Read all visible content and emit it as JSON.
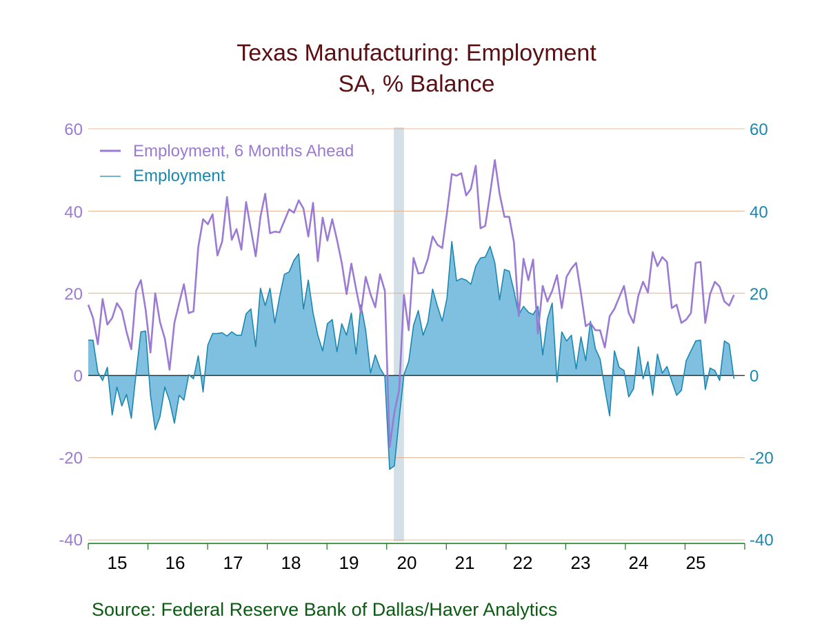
{
  "chart_data": {
    "type": "line",
    "title": "Texas Manufacturing: Employment",
    "subtitle": "SA, % Balance",
    "source": "Source:  Federal Reserve Bank of Dallas/Haver Analytics",
    "ylim": [
      -40,
      60
    ],
    "yticks": [
      -40,
      -20,
      0,
      20,
      40,
      60
    ],
    "y_tick_labels": [
      "-40",
      "-20",
      "0",
      "20",
      "40",
      "60"
    ],
    "x_tick_labels": [
      "15",
      "16",
      "17",
      "18",
      "19",
      "20",
      "21",
      "22",
      "23",
      "24",
      "25"
    ],
    "x_start": 2015.0,
    "x_end": 2026.0,
    "legend_position": "top-left",
    "recession_shading": [
      {
        "start": 2020.12,
        "end": 2020.29
      }
    ],
    "colors": {
      "series1": "#9b7ad4",
      "series2_line": "#1b87b0",
      "series2_fill": "#7fc0e0",
      "grid": "#e8a070",
      "axis_green": "#0b7a12",
      "recession": "#d3e0e8",
      "title": "#5a0f12",
      "source": "#0b5a12"
    },
    "series": [
      {
        "name": "Employment, 6 Months Ahead",
        "values": [
          17.2,
          14.0,
          7.6,
          18.6,
          12.4,
          14.0,
          17.6,
          15.8,
          10.6,
          6.4,
          20.6,
          23.2,
          16.0,
          5.6,
          20.0,
          13.0,
          9.0,
          1.4,
          12.8,
          17.6,
          22.2,
          15.2,
          15.6,
          31.2,
          38.0,
          36.8,
          39.2,
          29.2,
          32.6,
          43.4,
          33.0,
          35.6,
          30.6,
          42.2,
          35.6,
          29.0,
          38.6,
          44.2,
          34.6,
          35.0,
          34.8,
          37.6,
          40.4,
          39.6,
          42.6,
          40.6,
          33.8,
          42.0,
          27.8,
          38.4,
          32.8,
          38.0,
          33.0,
          27.4,
          19.8,
          27.2,
          21.0,
          15.2,
          24.0,
          19.8,
          16.6,
          24.6,
          20.6,
          -17.4,
          -9.0,
          -3.4,
          19.6,
          11.0,
          28.6,
          24.8,
          25.0,
          28.4,
          33.8,
          31.8,
          31.0,
          39.6,
          49.0,
          48.6,
          49.2,
          43.8,
          45.4,
          51.0,
          35.8,
          36.4,
          44.2,
          52.4,
          44.2,
          38.6,
          38.6,
          32.4,
          14.4,
          28.4,
          23.2,
          28.2,
          10.2,
          21.8,
          18.0,
          20.6,
          24.4,
          16.4,
          24.0,
          26.0,
          27.4,
          20.0,
          12.0,
          12.8,
          11.0,
          11.0,
          6.8,
          14.4,
          16.2,
          19.0,
          21.8,
          15.2,
          12.8,
          19.4,
          22.8,
          20.2,
          30.0,
          26.6,
          28.8,
          27.6,
          16.4,
          17.2,
          12.8,
          13.6,
          15.2,
          27.4,
          27.6,
          12.8,
          19.8,
          22.8,
          21.6,
          18.0,
          17.0,
          19.6
        ]
      },
      {
        "name": "Employment",
        "values": [
          8.6,
          8.6,
          0.8,
          -1.2,
          2.0,
          -9.6,
          -2.8,
          -7.4,
          -4.6,
          -10.4,
          0.6,
          10.6,
          10.8,
          -4.8,
          -13.2,
          -10.0,
          -2.8,
          -6.2,
          -11.6,
          -4.8,
          -6.0,
          0.2,
          -0.8,
          4.8,
          -4.0,
          7.4,
          10.2,
          10.2,
          10.4,
          9.6,
          10.6,
          9.8,
          9.8,
          15.0,
          16.2,
          7.0,
          21.2,
          17.0,
          21.2,
          12.8,
          19.2,
          24.6,
          25.2,
          28.0,
          29.6,
          16.2,
          23.2,
          15.2,
          9.8,
          6.0,
          12.6,
          13.6,
          5.8,
          12.6,
          9.8,
          15.2,
          5.2,
          17.2,
          11.0,
          0.6,
          5.0,
          1.8,
          -0.2,
          -22.8,
          -22.0,
          -10.4,
          0.2,
          3.4,
          12.2,
          15.8,
          9.8,
          13.0,
          21.0,
          16.8,
          13.2,
          18.8,
          32.6,
          23.0,
          23.6,
          23.2,
          22.2,
          26.6,
          28.6,
          28.8,
          31.4,
          27.4,
          18.4,
          25.8,
          25.4,
          20.6,
          14.8,
          16.8,
          15.4,
          14.8,
          16.8,
          5.0,
          13.8,
          17.6,
          -1.6,
          10.6,
          8.4,
          9.8,
          1.6,
          9.4,
          3.6,
          13.2,
          6.6,
          4.0,
          -3.2,
          -9.8,
          6.0,
          2.0,
          1.2,
          -5.2,
          -3.2,
          7.0,
          -0.8,
          3.4,
          -4.8,
          5.2,
          0.6,
          2.2,
          -1.4,
          -4.8,
          -3.6,
          3.6,
          6.0,
          8.4,
          8.6,
          -3.4,
          1.8,
          1.2,
          -1.2,
          8.4,
          7.6,
          -0.8
        ]
      }
    ]
  }
}
